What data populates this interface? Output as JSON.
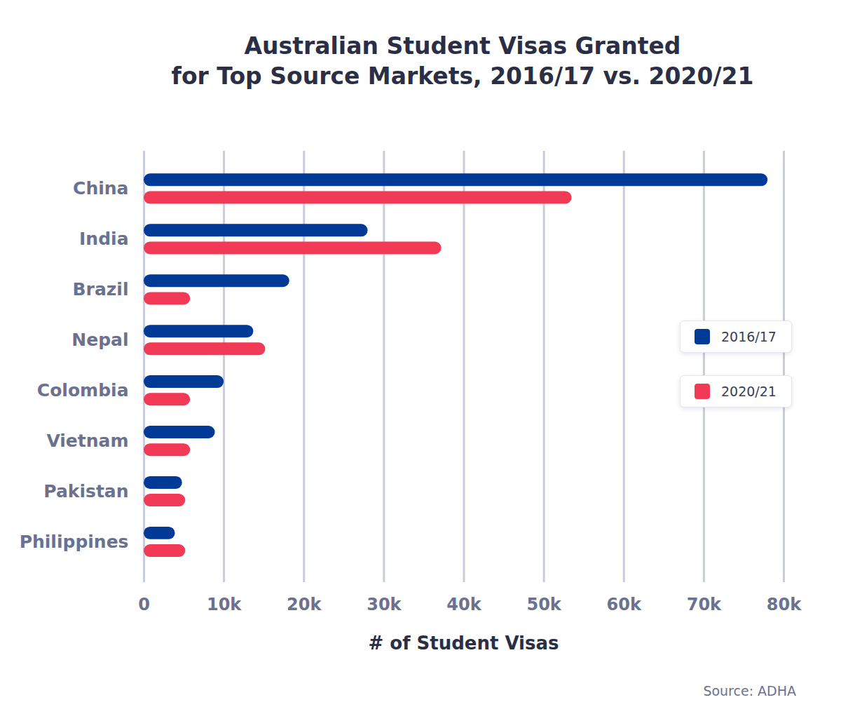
{
  "chart_data": {
    "type": "bar",
    "orientation": "horizontal",
    "title": "Australian Student Visas Granted\nfor Top Source Markets, 2016/17 vs. 2020/21",
    "x_label": "# of Student Visas",
    "caption": "Source: ADHA",
    "categories": [
      "China",
      "India",
      "Brazil",
      "Nepal",
      "Colombia",
      "Vietnam",
      "Pakistan",
      "Philippines"
    ],
    "series": [
      {
        "name": "2016/17",
        "color": "#003a96",
        "values": [
          78000,
          28000,
          18200,
          13700,
          10000,
          8900,
          4800,
          3900
        ]
      },
      {
        "name": "2020/21",
        "color": "#f23a56",
        "values": [
          53500,
          37200,
          5800,
          15200,
          5800,
          5800,
          5200,
          5200
        ]
      }
    ],
    "xlim": [
      0,
      80000
    ],
    "xticks": [
      0,
      {
        "value": 10000,
        "label": "10k"
      },
      {
        "value": 20000,
        "label": "20k"
      },
      {
        "value": 30000,
        "label": "30k"
      },
      {
        "value": 40000,
        "label": "40k"
      },
      {
        "value": 50000,
        "label": "50k"
      },
      {
        "value": 60000,
        "label": "60k"
      },
      {
        "value": 70000,
        "label": "70k"
      },
      {
        "value": 80000,
        "label": "80k"
      }
    ],
    "grid": true,
    "legend": "right"
  }
}
